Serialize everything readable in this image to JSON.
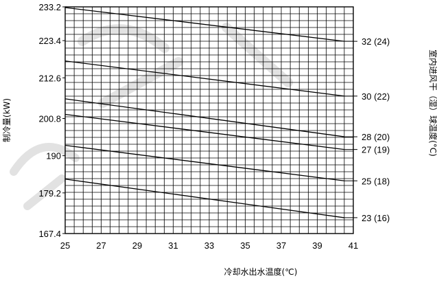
{
  "chart_data": {
    "type": "line",
    "title": "",
    "xlabel": "冷却水出水温度(℃)",
    "ylabel": "制冷量(kW)",
    "right_label": "室内进风干（湿）球温度(°C)",
    "xlim": [
      25,
      41
    ],
    "ylim": [
      167.4,
      233.2
    ],
    "x_ticks": [
      "25",
      "27",
      "29",
      "31",
      "33",
      "35",
      "37",
      "39",
      "41"
    ],
    "y_ticks": [
      {
        "value": 233.2,
        "label": "233.2"
      },
      {
        "value": 223.4,
        "label": "223.4"
      },
      {
        "value": 212.6,
        "label": "212.6"
      },
      {
        "value": 200.8,
        "label": "200.8"
      },
      {
        "value": 190,
        "label": "190"
      },
      {
        "value": 179.2,
        "label": "179.2"
      },
      {
        "value": 167.4,
        "label": "167.4"
      }
    ],
    "grid": true,
    "series": [
      {
        "name": "32 (24)",
        "x": [
          25,
          40.5
        ],
        "y": [
          233.0,
          223.2
        ]
      },
      {
        "name": "30 (22)",
        "x": [
          25,
          40.5
        ],
        "y": [
          217.5,
          207.3
        ]
      },
      {
        "name": "28 (20)",
        "x": [
          25,
          40.5
        ],
        "y": [
          206.5,
          195.5
        ]
      },
      {
        "name": "27 (19)",
        "x": [
          25,
          40.5
        ],
        "y": [
          202.0,
          191.8
        ]
      },
      {
        "name": "25 (18)",
        "x": [
          25,
          40.5
        ],
        "y": [
          193.0,
          182.7
        ]
      },
      {
        "name": "23 (16)",
        "x": [
          25,
          40.5
        ],
        "y": [
          183.2,
          172.0
        ]
      }
    ]
  }
}
